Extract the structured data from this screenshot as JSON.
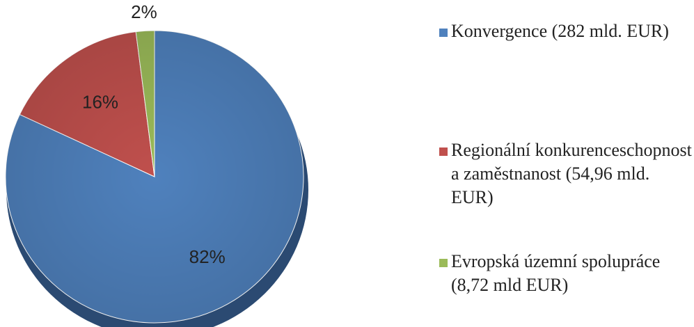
{
  "chart_data": {
    "type": "pie",
    "categories": [
      "Konvergence (282 mld. EUR)",
      "Regionální konkurenceschopnost a zaměstnanost (54,96 mld. EUR)",
      "Evropská územní spolupráce (8,72 mld EUR)"
    ],
    "values": [
      82,
      16,
      2
    ],
    "data_labels": [
      "82%",
      "16%",
      "2%"
    ],
    "colors": [
      "#4f81bd",
      "#c0504d",
      "#9bbb59"
    ],
    "legend_position": "right",
    "start_angle": "top, clockwise"
  }
}
